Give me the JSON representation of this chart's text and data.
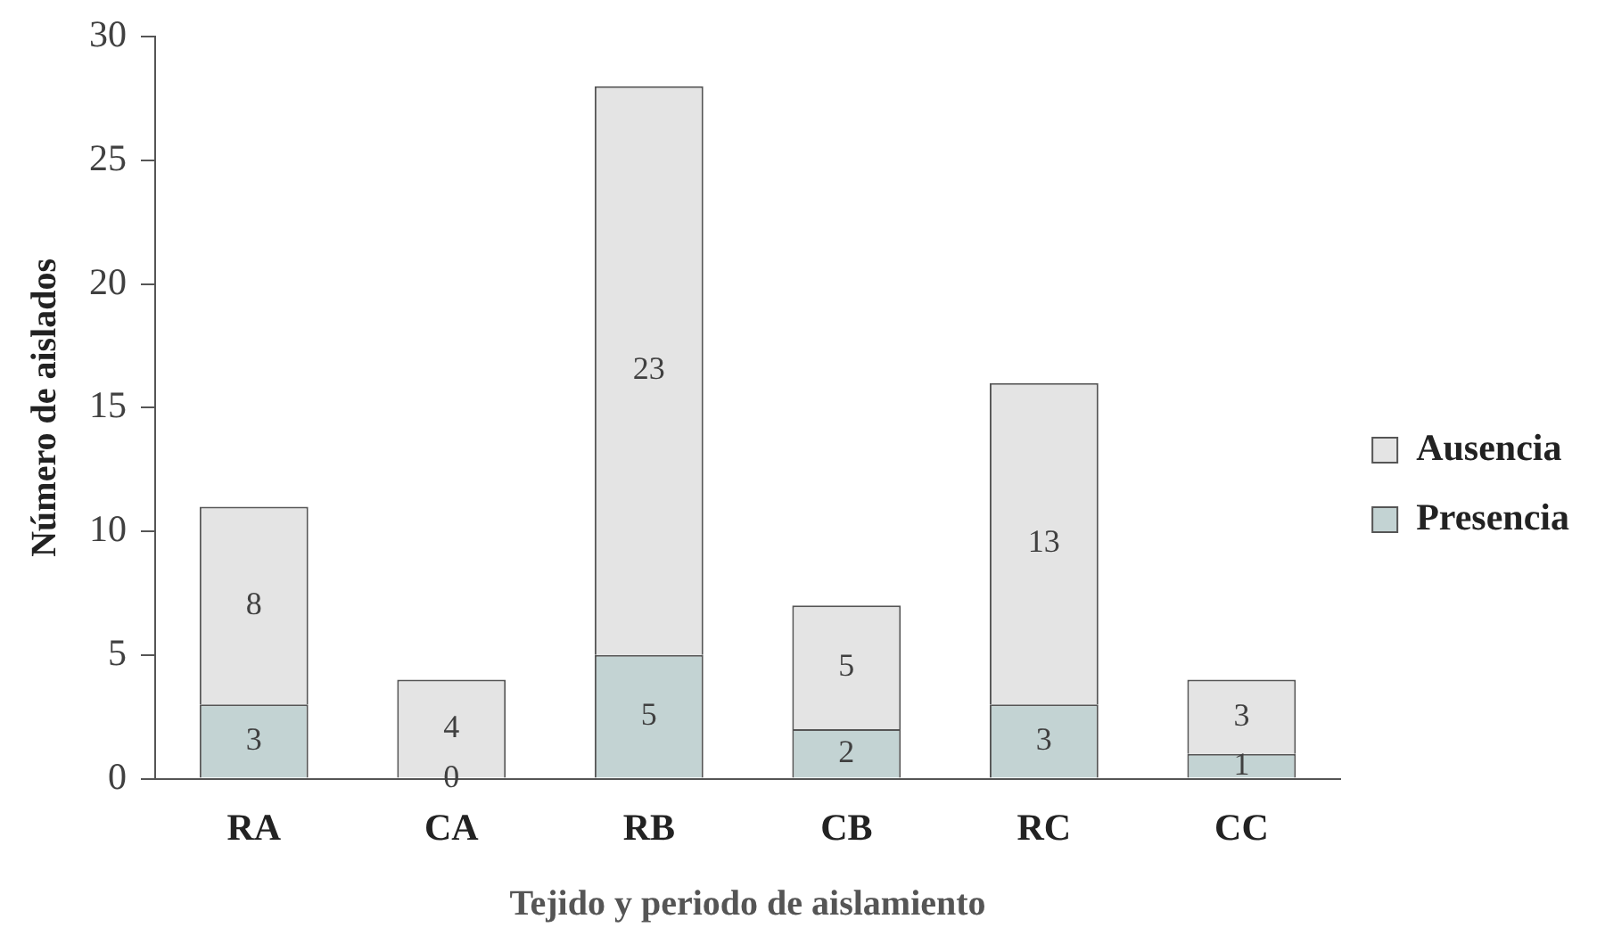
{
  "chart_data": {
    "type": "bar",
    "xlabel": "Tejido y periodo de aislamiento",
    "ylabel": "Número de aislados",
    "categories": [
      "RA",
      "CA",
      "RB",
      "CB",
      "RC",
      "CC"
    ],
    "stacked": true,
    "series": [
      {
        "name": "Presencia",
        "color": "#c3d3d3",
        "values": [
          3,
          0,
          5,
          2,
          3,
          1
        ]
      },
      {
        "name": "Ausencia",
        "color": "#e4e4e4",
        "values": [
          8,
          4,
          23,
          5,
          13,
          3
        ]
      }
    ],
    "ylim": [
      0,
      30
    ],
    "yticks": [
      0,
      5,
      10,
      15,
      20,
      25,
      30
    ],
    "data_labels": true,
    "legend": "right",
    "grid": false
  }
}
